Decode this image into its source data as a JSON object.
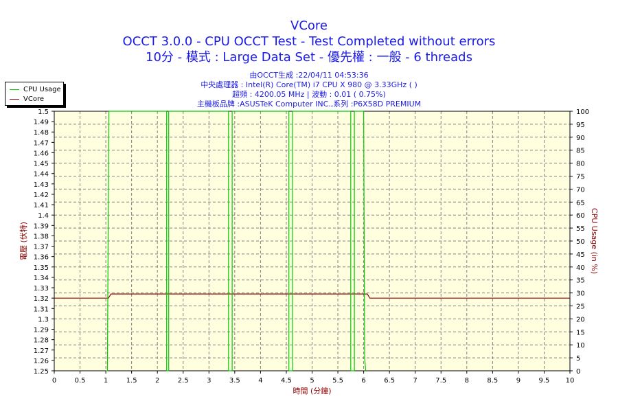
{
  "title": {
    "line1": "VCore",
    "line2": "OCCT 3.0.0 - CPU OCCT Test - Test Completed without errors",
    "line3": "10分 - 模式 : Large Data Set - 優先權 : 一般 - 6 threads"
  },
  "info": {
    "line1": "由OCCT生成 :22/04/11 04:53:36",
    "line2": "中央處理器 : Intel(R) Core(TM) i7 CPU X 980 @ 3.33GHz (    )",
    "line3": "超頻 : 4200.05 MHz | 波動 : 0.01 ( 0.75%)",
    "line4": "主機板品牌 :ASUSTeK Computer INC.,系列 :P6X58D PREMIUM"
  },
  "legend": {
    "items": [
      {
        "label": "CPU Usage",
        "color": "#00cc00"
      },
      {
        "label": "VCore",
        "color": "#8b0000"
      }
    ]
  },
  "colors": {
    "title": "#1a1ae6",
    "plot_background": "#ffffe0",
    "grid": "#808080",
    "axis_title": "#8b0000",
    "cpu_usage": "#00cc00",
    "vcore": "#8b0000"
  },
  "chart_data": {
    "type": "line",
    "xlabel": "時間 (分鐘)",
    "ylabel_left": "電壓 (伏特)",
    "ylabel_right": "CPU Usage (in %)",
    "xlim": [
      0,
      10
    ],
    "ylim_left": [
      1.25,
      1.5
    ],
    "ylim_right": [
      0,
      100
    ],
    "x_ticks": [
      "0",
      "0.5",
      "1",
      "1.5",
      "2",
      "2.5",
      "3",
      "3.5",
      "4",
      "4.5",
      "5",
      "5.5",
      "6",
      "6.5",
      "7",
      "7.5",
      "8",
      "8.5",
      "9",
      "9.5",
      "10"
    ],
    "y_left_ticks": [
      "1.25",
      "1.26",
      "1.27",
      "1.28",
      "1.29",
      "1.3",
      "1.31",
      "1.32",
      "1.33",
      "1.34",
      "1.35",
      "1.36",
      "1.37",
      "1.38",
      "1.39",
      "1.4",
      "1.41",
      "1.42",
      "1.43",
      "1.44",
      "1.45",
      "1.46",
      "1.47",
      "1.48",
      "1.49",
      "1.5"
    ],
    "y_right_ticks": [
      "0",
      "5",
      "10",
      "15",
      "20",
      "25",
      "30",
      "35",
      "40",
      "45",
      "50",
      "55",
      "60",
      "65",
      "70",
      "75",
      "80",
      "85",
      "90",
      "95",
      "100"
    ],
    "grid": true,
    "legend_position": "top-left",
    "series": [
      {
        "name": "VCore",
        "axis": "left",
        "x": [
          0,
          1.0,
          1.05,
          1.1,
          6.0,
          6.07,
          6.12,
          10
        ],
        "y": [
          1.32,
          1.32,
          1.32,
          1.324,
          1.324,
          1.324,
          1.32,
          1.32
        ]
      },
      {
        "name": "CPU Usage",
        "axis": "right",
        "x": [
          1.0,
          1.03,
          1.06,
          1.06,
          2.18,
          2.18,
          2.22,
          2.22,
          3.38,
          3.38,
          3.45,
          3.45,
          4.55,
          4.55,
          4.62,
          4.62,
          5.75,
          5.75,
          5.82,
          5.82,
          6.0,
          6.02,
          6.04
        ],
        "y": [
          0,
          0,
          100,
          100,
          100,
          0,
          0,
          100,
          100,
          0,
          0,
          100,
          100,
          0,
          0,
          100,
          100,
          0,
          0,
          100,
          100,
          5,
          0
        ]
      }
    ]
  }
}
